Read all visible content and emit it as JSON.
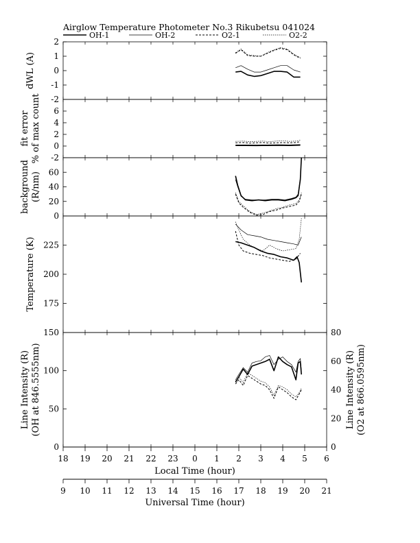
{
  "chart_data": {
    "type": "line",
    "title": "Airglow Temperature Photometer No.3  Rikubetsu  041024",
    "legend": {
      "placement": "top",
      "entries": [
        {
          "name": "OH-1",
          "style": "solid-thick"
        },
        {
          "name": "OH-2",
          "style": "solid-thin"
        },
        {
          "name": "O2-1",
          "style": "dashed"
        },
        {
          "name": "O2-2",
          "style": "dotted"
        }
      ]
    },
    "x_axes": [
      {
        "label": "Local Time (hour)",
        "ticks": [
          "18",
          "19",
          "20",
          "21",
          "22",
          "23",
          "0",
          "1",
          "2",
          "3",
          "4",
          "5",
          "6"
        ],
        "range": [
          18,
          30
        ]
      },
      {
        "label": "Universal Time (hour)",
        "ticks": [
          "9",
          "10",
          "11",
          "12",
          "13",
          "14",
          "15",
          "16",
          "17",
          "18",
          "19",
          "20",
          "21"
        ],
        "range": [
          9,
          21
        ]
      }
    ],
    "panels": [
      {
        "id": "dwl",
        "ylabel": [
          "dWL  (A)"
        ],
        "ylim": [
          -2,
          2
        ],
        "yticks": [
          "-2",
          "-1",
          "0",
          "1",
          "2"
        ],
        "series": [
          {
            "name": "OH-1",
            "x": [
              25.85,
              26.1,
              26.4,
              26.7,
              27.0,
              27.3,
              27.6,
              27.9,
              28.2,
              28.5,
              28.8
            ],
            "y": [
              -0.1,
              -0.05,
              -0.3,
              -0.4,
              -0.35,
              -0.2,
              -0.05,
              -0.05,
              -0.1,
              -0.45,
              -0.45
            ]
          },
          {
            "name": "OH-2",
            "x": [
              25.85,
              26.1,
              26.4,
              26.7,
              27.0,
              27.3,
              27.6,
              27.9,
              28.2,
              28.5,
              28.8
            ],
            "y": [
              0.2,
              0.35,
              0.1,
              -0.1,
              -0.1,
              0.05,
              0.2,
              0.35,
              0.35,
              0.05,
              -0.1
            ]
          },
          {
            "name": "O2-1",
            "x": [
              25.85,
              26.1,
              26.4,
              26.7,
              27.0,
              27.3,
              27.6,
              27.9,
              28.2,
              28.5,
              28.8
            ],
            "y": [
              1.2,
              1.45,
              1.05,
              1.0,
              1.0,
              1.2,
              1.4,
              1.55,
              1.45,
              1.1,
              0.85
            ]
          },
          {
            "name": "O2-2",
            "x": [
              25.85,
              26.1,
              26.4,
              26.7,
              27.0,
              27.3,
              27.6,
              27.9,
              28.2,
              28.5,
              28.8
            ],
            "y": [
              1.25,
              1.5,
              1.1,
              1.05,
              1.0,
              1.25,
              1.45,
              1.6,
              1.5,
              1.15,
              0.9
            ]
          }
        ]
      },
      {
        "id": "fit-error",
        "ylabel": [
          "fit error",
          "% of max count"
        ],
        "ylim": [
          -2,
          8
        ],
        "yticks": [
          "-2",
          "0",
          "2",
          "4",
          "6"
        ],
        "series": [
          {
            "name": "OH-1",
            "x": [
              25.85,
              26.3,
              26.8,
              27.3,
              27.8,
              28.3,
              28.8
            ],
            "y": [
              0.1,
              0.1,
              0.08,
              0.1,
              0.12,
              0.1,
              0.15
            ]
          },
          {
            "name": "OH-2",
            "x": [
              25.85,
              26.3,
              26.8,
              27.3,
              27.8,
              28.3,
              28.8
            ],
            "y": [
              0.2,
              0.2,
              0.18,
              0.2,
              0.22,
              0.2,
              0.25
            ]
          },
          {
            "name": "O2-1",
            "x": [
              25.85,
              26.2,
              26.5,
              26.8,
              27.1,
              27.4,
              27.7,
              28.0,
              28.3,
              28.6,
              28.8
            ],
            "y": [
              0.55,
              0.6,
              0.5,
              0.55,
              0.6,
              0.5,
              0.55,
              0.6,
              0.55,
              0.6,
              0.75
            ]
          },
          {
            "name": "O2-2",
            "x": [
              25.85,
              26.2,
              26.5,
              26.8,
              27.1,
              27.4,
              27.7,
              28.0,
              28.3,
              28.6,
              28.8
            ],
            "y": [
              0.8,
              0.85,
              0.75,
              0.8,
              0.85,
              0.75,
              0.85,
              0.9,
              0.8,
              0.85,
              1.0
            ]
          }
        ]
      },
      {
        "id": "background",
        "ylabel": [
          "background",
          "(R/nm)"
        ],
        "ylim": [
          0,
          80
        ],
        "yticks": [
          "0",
          "20",
          "40",
          "60"
        ],
        "series": [
          {
            "name": "OH-1",
            "x": [
              25.85,
              25.95,
              26.1,
              26.3,
              26.6,
              26.9,
              27.2,
              27.5,
              27.8,
              28.1,
              28.4,
              28.6,
              28.7,
              28.8,
              28.85
            ],
            "y": [
              55,
              42,
              28,
              22,
              21,
              22,
              21,
              22,
              22,
              21,
              23,
              25,
              28,
              50,
              80
            ]
          },
          {
            "name": "OH-2",
            "x": [
              25.85,
              25.95,
              26.1,
              26.3,
              26.6,
              26.9,
              27.2,
              27.5,
              27.8,
              28.1,
              28.4,
              28.6,
              28.7,
              28.8,
              28.85
            ],
            "y": [
              50,
              40,
              27,
              23,
              22,
              22,
              22,
              23,
              23,
              22,
              24,
              26,
              30,
              52,
              80
            ]
          },
          {
            "name": "O2-1",
            "x": [
              25.85,
              26.0,
              26.2,
              26.5,
              26.8,
              27.1,
              27.4,
              27.7,
              28.0,
              28.3,
              28.6,
              28.75,
              28.85
            ],
            "y": [
              30,
              18,
              12,
              5,
              1,
              2,
              6,
              8,
              11,
              13,
              15,
              20,
              30
            ]
          },
          {
            "name": "O2-2",
            "x": [
              25.85,
              26.0,
              26.2,
              26.5,
              26.8,
              27.1,
              27.4,
              27.7,
              28.0,
              28.3,
              28.6,
              28.75,
              28.85
            ],
            "y": [
              32,
              20,
              14,
              6,
              2,
              4,
              7,
              10,
              12,
              15,
              17,
              22,
              32
            ]
          }
        ]
      },
      {
        "id": "temperature",
        "ylabel": [
          "Temperature (K)"
        ],
        "ylim": [
          150,
          250
        ],
        "yticks": [
          "175",
          "200",
          "225"
        ],
        "series": [
          {
            "name": "OH-1",
            "x": [
              25.85,
              26.1,
              26.4,
              26.7,
              27.0,
              27.3,
              27.6,
              27.9,
              28.2,
              28.5,
              28.65,
              28.75,
              28.85
            ],
            "y": [
              228,
              227,
              225,
              223,
              220,
              218,
              217,
              215,
              214,
              212,
              215,
              210,
              193
            ]
          },
          {
            "name": "OH-2",
            "x": [
              25.85,
              26.1,
              26.4,
              26.7,
              27.0,
              27.3,
              27.6,
              27.9,
              28.2,
              28.5,
              28.7,
              28.85
            ],
            "y": [
              243,
              238,
              234,
              233,
              232,
              230,
              229,
              228,
              227,
              226,
              225,
              232
            ]
          },
          {
            "name": "O2-1",
            "x": [
              25.85,
              26.0,
              26.2,
              26.5,
              26.8,
              27.1,
              27.4,
              27.7,
              28.0,
              28.3,
              28.6,
              28.8
            ],
            "y": [
              237,
              225,
              220,
              218,
              217,
              216,
              214,
              213,
              212,
              211,
              213,
              218
            ]
          },
          {
            "name": "O2-2",
            "x": [
              25.85,
              26.0,
              26.2,
              26.5,
              26.8,
              27.1,
              27.4,
              27.7,
              28.0,
              28.3,
              28.6,
              28.75,
              28.85
            ],
            "y": [
              245,
              238,
              230,
              225,
              222,
              220,
              225,
              222,
              220,
              221,
              222,
              230,
              248
            ]
          }
        ]
      },
      {
        "id": "line-intensity",
        "ylabel": [
          "Line Intensity (R)",
          "(OH at 846.5555nm)"
        ],
        "ylabel_right": [
          "Line Intensity (R)",
          "(O2 at 866.0595nm)"
        ],
        "ylim": [
          0,
          150
        ],
        "yticks": [
          "0",
          "50",
          "100",
          "150"
        ],
        "ylim_right": [
          0,
          80
        ],
        "yticks_right": [
          "0",
          "20",
          "40",
          "60",
          "80"
        ],
        "series": [
          {
            "name": "OH-1",
            "axis": "left",
            "x": [
              25.85,
              26.0,
              26.2,
              26.4,
              26.6,
              26.8,
              27.0,
              27.2,
              27.4,
              27.6,
              27.8,
              28.0,
              28.2,
              28.4,
              28.6,
              28.7,
              28.8,
              28.85
            ],
            "y": [
              85,
              92,
              102,
              95,
              106,
              108,
              110,
              112,
              115,
              100,
              118,
              112,
              108,
              105,
              88,
              110,
              112,
              95
            ]
          },
          {
            "name": "OH-2",
            "axis": "left",
            "x": [
              25.85,
              26.0,
              26.2,
              26.4,
              26.6,
              26.8,
              27.0,
              27.2,
              27.4,
              27.6,
              27.8,
              28.0,
              28.2,
              28.4,
              28.6,
              28.7,
              28.8,
              28.85
            ],
            "y": [
              88,
              95,
              104,
              98,
              110,
              112,
              113,
              118,
              120,
              108,
              115,
              118,
              112,
              108,
              98,
              112,
              116,
              100
            ]
          },
          {
            "name": "O2-1",
            "axis": "right",
            "x": [
              25.85,
              26.0,
              26.2,
              26.4,
              26.6,
              26.8,
              27.0,
              27.2,
              27.4,
              27.6,
              27.8,
              28.0,
              28.2,
              28.4,
              28.6,
              28.75,
              28.85
            ],
            "y": [
              44,
              47,
              43,
              50,
              48,
              46,
              44,
              43,
              40,
              34,
              42,
              40,
              38,
              35,
              33,
              37,
              40
            ]
          },
          {
            "name": "O2-2",
            "axis": "right",
            "x": [
              25.85,
              26.0,
              26.2,
              26.4,
              26.6,
              26.8,
              27.0,
              27.2,
              27.4,
              27.6,
              27.8,
              28.0,
              28.2,
              28.4,
              28.6,
              28.75,
              28.85
            ],
            "y": [
              46,
              49,
              45,
              52,
              50,
              48,
              46,
              45,
              42,
              36,
              43,
              42,
              40,
              37,
              35,
              38,
              41
            ]
          }
        ]
      }
    ]
  }
}
